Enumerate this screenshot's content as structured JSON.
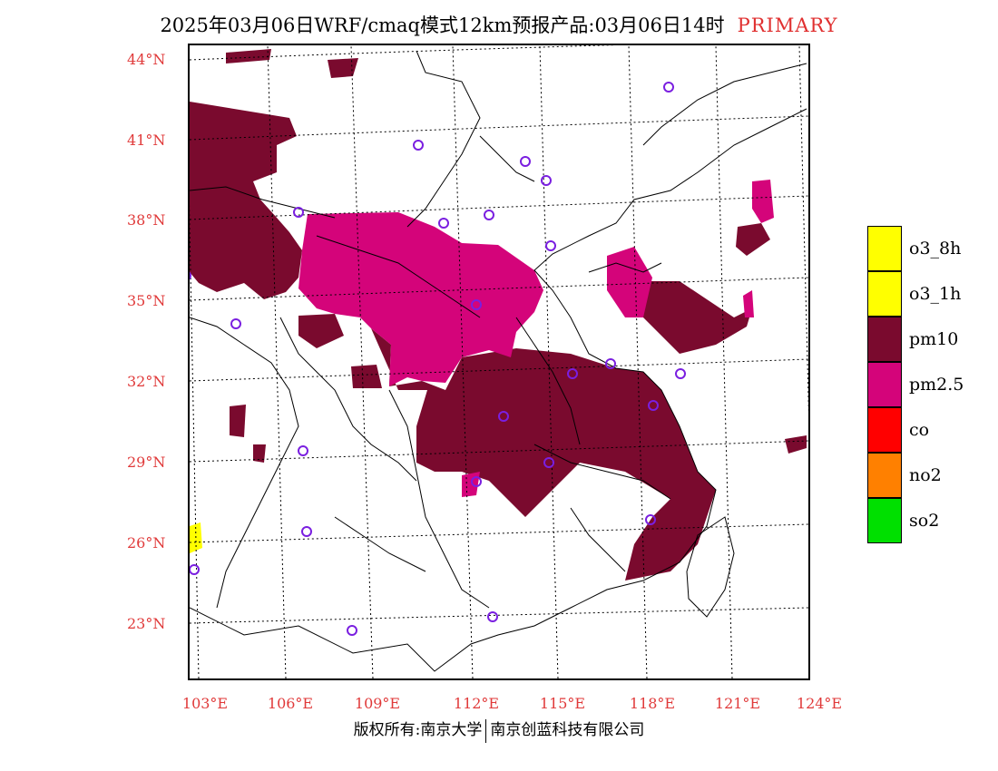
{
  "title": {
    "main": "2025年03月06日WRF/cmaq模式12km预报产品:03月06日14时",
    "primary": "PRIMARY"
  },
  "axes": {
    "lat_labels": [
      "44°N",
      "41°N",
      "38°N",
      "35°N",
      "32°N",
      "29°N",
      "26°N",
      "23°N"
    ],
    "lon_labels": [
      "103°E",
      "106°E",
      "109°E",
      "112°E",
      "115°E",
      "118°E",
      "121°E",
      "124°E"
    ]
  },
  "legend": {
    "items": [
      {
        "label": "o3_8h",
        "color": "#ffff00"
      },
      {
        "label": "o3_1h",
        "color": "#ffff00"
      },
      {
        "label": "pm10",
        "color": "#7a0a2e"
      },
      {
        "label": "pm2.5",
        "color": "#d4047a"
      },
      {
        "label": "co",
        "color": "#ff0000"
      },
      {
        "label": "no2",
        "color": "#ff8000"
      },
      {
        "label": "so2",
        "color": "#00e000"
      }
    ]
  },
  "footer": {
    "left": "版权所有:南京大学",
    "right": "南京创蓝科技有限公司"
  },
  "colors": {
    "pm10": "#7a0a2e",
    "pm25": "#d4047a",
    "o3": "#ffff00",
    "axis_label": "#e03a3a",
    "station": "#7a1fe0"
  }
}
